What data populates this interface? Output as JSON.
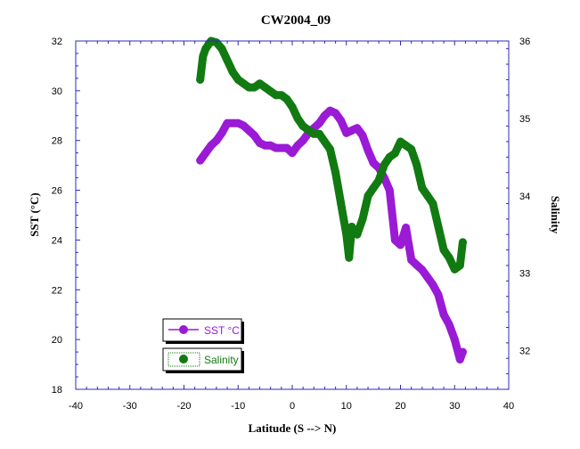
{
  "chart_data": {
    "type": "line",
    "title": "CW2004_09",
    "xlabel": "Latitude (S --> N)",
    "ylabel": "SST (°C)",
    "y2label": "Salinity",
    "xlim": [
      -40,
      40
    ],
    "ylim": [
      18,
      32
    ],
    "y2lim": [
      31.5,
      36
    ],
    "xticks": [
      "-40",
      "-30",
      "-20",
      "-10",
      "0",
      "10",
      "20",
      "30",
      "40"
    ],
    "yticks": [
      "18",
      "20",
      "22",
      "24",
      "26",
      "28",
      "30",
      "32"
    ],
    "y2ticks": [
      "32",
      "33",
      "34",
      "35",
      "36"
    ],
    "grid": false,
    "legend_position": "bottom-left",
    "series": [
      {
        "name": "SST °C",
        "axis": "left",
        "color": "#9a1ad6",
        "x": [
          -17.0,
          -16.0,
          -15.0,
          -14.0,
          -13.0,
          -12.0,
          -11.0,
          -10.0,
          -9.0,
          -8.0,
          -7.0,
          -6.0,
          -5.0,
          -4.0,
          -3.0,
          -2.0,
          -1.0,
          0.0,
          1.0,
          2.0,
          3.0,
          4.0,
          5.0,
          6.0,
          7.0,
          8.0,
          9.0,
          10.0,
          11.0,
          12.0,
          13.0,
          14.0,
          15.0,
          16.0,
          17.0,
          18.0,
          19.0,
          20.0,
          21.0,
          22.0,
          23.0,
          24.0,
          25.0,
          26.0,
          27.0,
          28.0,
          29.0,
          30.0,
          31.0,
          31.5
        ],
        "y": [
          27.2,
          27.5,
          27.8,
          28.0,
          28.3,
          28.7,
          28.7,
          28.7,
          28.6,
          28.4,
          28.2,
          27.9,
          27.8,
          27.8,
          27.7,
          27.7,
          27.7,
          27.5,
          27.8,
          28.0,
          28.3,
          28.5,
          28.7,
          29.0,
          29.2,
          29.1,
          28.8,
          28.3,
          28.4,
          28.5,
          28.2,
          27.6,
          27.1,
          26.9,
          26.5,
          26.0,
          24.0,
          23.8,
          24.5,
          23.2,
          23.0,
          22.8,
          22.5,
          22.2,
          21.8,
          21.0,
          20.6,
          20.0,
          19.2,
          19.5
        ]
      },
      {
        "name": "Salinity",
        "axis": "right",
        "color": "#117a11",
        "x": [
          -17.0,
          -16.5,
          -16.0,
          -15.0,
          -14.0,
          -13.0,
          -12.0,
          -11.0,
          -10.0,
          -9.0,
          -8.0,
          -7.0,
          -6.0,
          -5.0,
          -4.0,
          -3.0,
          -2.0,
          -1.0,
          0.0,
          1.0,
          2.0,
          3.0,
          4.0,
          5.0,
          6.0,
          7.0,
          8.0,
          9.0,
          10.0,
          10.5,
          11.0,
          12.0,
          13.0,
          14.0,
          15.0,
          16.0,
          17.0,
          18.0,
          19.0,
          20.0,
          21.0,
          22.0,
          23.0,
          24.0,
          25.0,
          26.0,
          27.0,
          28.0,
          29.0,
          30.0,
          31.0,
          31.5
        ],
        "y": [
          35.5,
          35.8,
          35.9,
          36.0,
          35.98,
          35.9,
          35.75,
          35.6,
          35.5,
          35.45,
          35.4,
          35.4,
          35.45,
          35.4,
          35.35,
          35.3,
          35.3,
          35.25,
          35.15,
          35.0,
          34.9,
          34.85,
          34.8,
          34.8,
          34.7,
          34.6,
          34.3,
          33.9,
          33.5,
          33.2,
          33.6,
          33.5,
          33.7,
          34.0,
          34.1,
          34.2,
          34.4,
          34.5,
          34.55,
          34.7,
          34.65,
          34.6,
          34.4,
          34.1,
          34.0,
          33.9,
          33.6,
          33.3,
          33.2,
          33.05,
          33.1,
          33.4
        ]
      }
    ]
  }
}
